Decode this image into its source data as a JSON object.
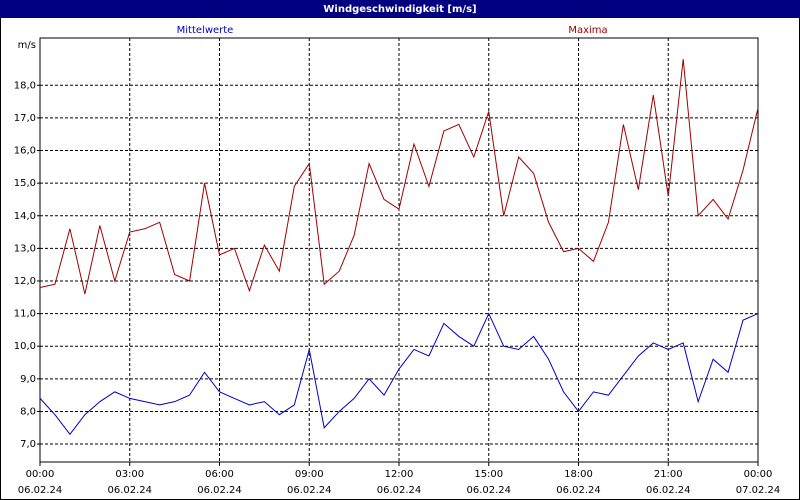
{
  "chart_data": {
    "type": "line",
    "title": "Windgeschwindigkeit [m/s]",
    "y_unit": "m/s",
    "x": [
      0,
      0.5,
      1,
      1.5,
      2,
      2.5,
      3,
      3.5,
      4,
      4.5,
      5,
      5.5,
      6,
      6.5,
      7,
      7.5,
      8,
      8.5,
      9,
      9.5,
      10,
      10.5,
      11,
      11.5,
      12,
      12.5,
      13,
      13.5,
      14,
      14.5,
      15,
      15.5,
      16,
      16.5,
      17,
      17.5,
      18,
      18.5,
      19,
      19.5,
      20,
      20.5,
      21,
      21.5,
      22,
      22.5,
      23,
      23.5,
      24
    ],
    "series": [
      {
        "name": "Mittelwerte",
        "color": "#0000c8",
        "values": [
          8.4,
          7.9,
          7.3,
          7.9,
          8.3,
          8.6,
          8.4,
          8.3,
          8.2,
          8.3,
          8.5,
          9.2,
          8.6,
          8.4,
          8.2,
          8.3,
          7.9,
          8.2,
          9.9,
          7.5,
          8.0,
          8.4,
          9.0,
          8.5,
          9.3,
          9.9,
          9.7,
          10.7,
          10.3,
          10.0,
          11.0,
          10.0,
          9.9,
          10.3,
          9.6,
          8.6,
          8.0,
          8.6,
          8.5,
          9.1,
          9.7,
          10.1,
          9.9,
          10.1,
          8.3,
          9.6,
          9.2,
          10.8,
          11.0
        ]
      },
      {
        "name": "Maxima",
        "color": "#a00000",
        "values": [
          11.8,
          11.9,
          13.6,
          11.6,
          13.7,
          12.0,
          13.5,
          13.6,
          13.8,
          12.2,
          12.0,
          15.0,
          12.8,
          13.0,
          11.7,
          13.1,
          12.3,
          14.9,
          15.6,
          11.9,
          12.3,
          13.4,
          15.6,
          14.5,
          14.2,
          16.2,
          14.9,
          16.6,
          16.8,
          15.8,
          17.2,
          14.0,
          15.8,
          15.3,
          13.8,
          12.9,
          13.0,
          12.6,
          13.8,
          16.8,
          14.8,
          17.7,
          14.6,
          18.8,
          14.0,
          14.5,
          13.9,
          15.4,
          17.3
        ]
      }
    ],
    "xlim": [
      0,
      24
    ],
    "xticks": [
      {
        "value": 0,
        "label": "00:00"
      },
      {
        "value": 3,
        "label": "03:00"
      },
      {
        "value": 6,
        "label": "06:00"
      },
      {
        "value": 9,
        "label": "09:00"
      },
      {
        "value": 12,
        "label": "12:00"
      },
      {
        "value": 15,
        "label": "15:00"
      },
      {
        "value": 18,
        "label": "18:00"
      },
      {
        "value": 21,
        "label": "21:00"
      },
      {
        "value": 24,
        "label": "00:00"
      }
    ],
    "xtick_dates": [
      "06.02.24",
      "06.02.24",
      "06.02.24",
      "06.02.24",
      "06.02.24",
      "06.02.24",
      "06.02.24",
      "06.02.24",
      "07.02.24"
    ],
    "ylim": [
      6.45,
      19.45
    ],
    "yticks": [
      {
        "value": 7,
        "label": "7,0"
      },
      {
        "value": 8,
        "label": "8,0"
      },
      {
        "value": 9,
        "label": "9,0"
      },
      {
        "value": 10,
        "label": "10,0"
      },
      {
        "value": 11,
        "label": "11,0"
      },
      {
        "value": 12,
        "label": "12,0"
      },
      {
        "value": 13,
        "label": "13,0"
      },
      {
        "value": 14,
        "label": "14,0"
      },
      {
        "value": 15,
        "label": "15,0"
      },
      {
        "value": 16,
        "label": "16,0"
      },
      {
        "value": 17,
        "label": "17,0"
      },
      {
        "value": 18,
        "label": "18,0"
      }
    ],
    "grid": true
  }
}
